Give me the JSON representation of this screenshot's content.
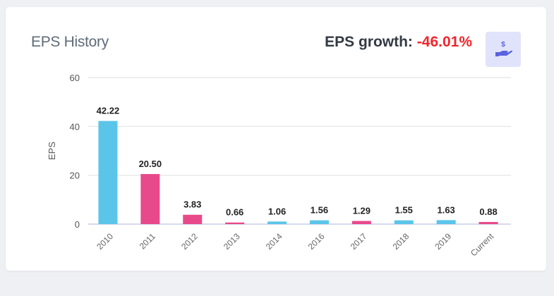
{
  "header": {
    "title": "EPS History",
    "growth_label": "EPS growth:",
    "growth_value": "-46.01%",
    "icon": "hand-holding-dollar-icon"
  },
  "colors": {
    "increase": "#5bc5e9",
    "decrease": "#e8498a",
    "accent_bg": "#e1e3fb",
    "accent": "#5a62e0",
    "negative": "#f0262d"
  },
  "chart_data": {
    "type": "bar",
    "title": "EPS History",
    "xlabel": "",
    "ylabel": "EPS",
    "ylim": [
      0,
      60
    ],
    "yticks": [
      0,
      20,
      40,
      60
    ],
    "grid": true,
    "categories": [
      "2010",
      "2011",
      "2012",
      "2013",
      "2014",
      "2016",
      "2017",
      "2018",
      "2019",
      "Current"
    ],
    "values": [
      42.22,
      20.5,
      3.83,
      0.66,
      1.06,
      1.56,
      1.29,
      1.55,
      1.63,
      0.88
    ],
    "labels": [
      "42.22",
      "20.50",
      "3.83",
      "0.66",
      "1.06",
      "1.56",
      "1.29",
      "1.55",
      "1.63",
      "0.88"
    ],
    "bar_colors": [
      "increase",
      "decrease",
      "decrease",
      "decrease",
      "increase",
      "increase",
      "decrease",
      "increase",
      "increase",
      "decrease"
    ]
  }
}
